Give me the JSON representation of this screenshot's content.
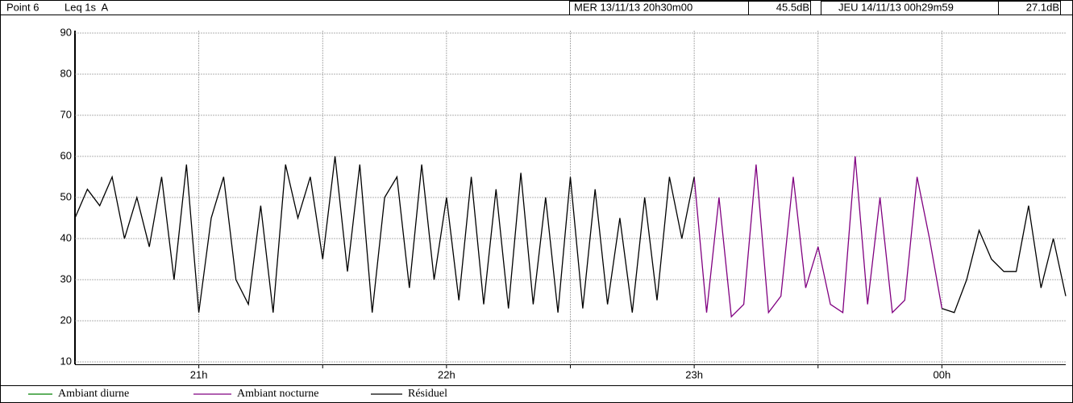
{
  "chart_data": {
    "type": "line",
    "point_label": "Point 6",
    "measure": "Leq 1s  A",
    "start_time": "MER 13/11/13 20h30m00",
    "start_level": "45.5dB",
    "end_time": "JEU 14/11/13 00h29m59",
    "end_level": "27.1dB",
    "xlim": [
      20.5,
      24.5
    ],
    "xticks": [
      {
        "value": 21,
        "label": "21h"
      },
      {
        "value": 22,
        "label": "22h"
      },
      {
        "value": 23,
        "label": "23h"
      },
      {
        "value": 24,
        "label": "00h"
      }
    ],
    "x_minor_ticks": [
      21.5,
      22.5,
      23.5
    ],
    "ylim": [
      10,
      90
    ],
    "yticks": [
      10,
      20,
      30,
      40,
      50,
      60,
      70,
      80,
      90
    ],
    "grid": true,
    "series": [
      {
        "name": "Ambiant diurne",
        "color": "#008000",
        "x": [],
        "values": []
      },
      {
        "name": "Ambiant nocturne",
        "color": "#800080",
        "x": [
          23.0,
          23.05,
          23.1,
          23.15,
          23.2,
          23.25,
          23.3,
          23.35,
          23.4,
          23.45,
          23.5,
          23.55,
          23.6,
          23.65,
          23.7,
          23.75,
          23.8,
          23.85,
          23.9,
          23.95,
          24.0
        ],
        "values": [
          55,
          22,
          50,
          21,
          24,
          58,
          22,
          26,
          55,
          28,
          38,
          24,
          22,
          60,
          24,
          50,
          22,
          25,
          55,
          40,
          23
        ]
      },
      {
        "name": "Résiduel",
        "color": "#000000",
        "x": [
          20.5,
          20.55,
          20.6,
          20.65,
          20.7,
          20.75,
          20.8,
          20.85,
          20.9,
          20.95,
          21.0,
          21.05,
          21.1,
          21.15,
          21.2,
          21.25,
          21.3,
          21.35,
          21.4,
          21.45,
          21.5,
          21.55,
          21.6,
          21.65,
          21.7,
          21.75,
          21.8,
          21.85,
          21.9,
          21.95,
          22.0,
          22.05,
          22.1,
          22.15,
          22.2,
          22.25,
          22.3,
          22.35,
          22.4,
          22.45,
          22.5,
          22.55,
          22.6,
          22.65,
          22.7,
          22.75,
          22.8,
          22.85,
          22.9,
          22.95,
          23.0,
          23.5,
          24.0,
          24.05,
          24.1,
          24.15,
          24.2,
          24.25,
          24.3,
          24.35,
          24.4,
          24.45,
          24.5
        ],
        "values": [
          45,
          52,
          48,
          55,
          40,
          50,
          38,
          55,
          30,
          58,
          22,
          45,
          55,
          30,
          24,
          48,
          22,
          58,
          45,
          55,
          35,
          60,
          32,
          58,
          22,
          50,
          55,
          28,
          58,
          30,
          50,
          25,
          55,
          24,
          52,
          23,
          56,
          24,
          50,
          22,
          55,
          23,
          52,
          24,
          45,
          22,
          50,
          25,
          55,
          40,
          55,
          null,
          23,
          22,
          30,
          42,
          35,
          32,
          32,
          48,
          28,
          40,
          26
        ]
      }
    ]
  }
}
